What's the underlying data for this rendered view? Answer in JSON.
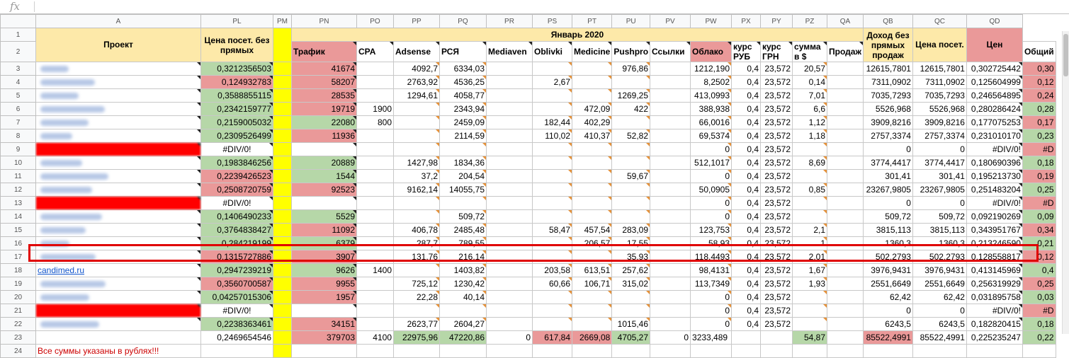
{
  "formula_bar": {
    "fx_label": "fx",
    "value": ""
  },
  "columns": [
    "A",
    "PL",
    "PM",
    "PN",
    "PO",
    "PP",
    "PQ",
    "PR",
    "PS",
    "PT",
    "PU",
    "PV",
    "PW",
    "PX",
    "PY",
    "PZ",
    "QA",
    "QB",
    "QC",
    "QD",
    ""
  ],
  "header": {
    "project": "Проект",
    "price_no_direct": "Цена посет. без прямых",
    "month": "Январь 2020",
    "traffic": "Трафик",
    "cpa": "CPA",
    "adsense": "Adsense",
    "rsya": "РСЯ",
    "mediaven": "Mediaven",
    "oblivki": "Oblivki",
    "medicine": "Medicine",
    "pushpro": "Pushpro",
    "links": "Ссылки",
    "cloud": "Облако",
    "rate_rub": "курс РУБ",
    "rate_uah": "курс ГРН",
    "sum_usd": "сумма в $",
    "sales": "Продаж",
    "total": "Общий",
    "income_no_direct": "Доход без прямых продаж",
    "price_visit": "Цена посет.",
    "price_cut": "Цен"
  },
  "rows": [
    {
      "n": "3",
      "site": "",
      "pl": "0,3212356503",
      "pn": "41674",
      "pp": "4092,7",
      "pq": "6334,03",
      "ps": "",
      "pt": "",
      "pu": "976,86",
      "po": "",
      "pw": "1212,190",
      "px": "0,4",
      "py": "23,572",
      "pz": "20,57",
      "qb": "12615,7801",
      "qc": "12615,7801",
      "qd": "0,302725442",
      "qe": "0,30"
    },
    {
      "n": "4",
      "site": "",
      "pl": "0,124932783",
      "pn": "58207",
      "pp": "2763,92",
      "pq": "4536,25",
      "ps": "2,67",
      "pt": "",
      "pu": "",
      "po": "",
      "pw": "8,2502",
      "px": "0,4",
      "py": "23,572",
      "pz": "0,14",
      "qb": "7311,0902",
      "qc": "7311,0902",
      "qd": "0,125604999",
      "qe": "0,12"
    },
    {
      "n": "5",
      "site": "",
      "pl": "0,3588855115",
      "pn": "28535",
      "pp": "1294,61",
      "pq": "4058,77",
      "ps": "",
      "pt": "",
      "pu": "1269,25",
      "po": "",
      "pw": "413,0993",
      "px": "0,4",
      "py": "23,572",
      "pz": "7,01",
      "qb": "7035,7293",
      "qc": "7035,7293",
      "qd": "0,246564895",
      "qe": "0,24"
    },
    {
      "n": "6",
      "site": "",
      "pl": "0,2342159777",
      "pn": "19719",
      "pp": "",
      "pq": "2343,94",
      "ps": "",
      "pt": "472,09",
      "pu": "422",
      "po": "1900",
      "pw": "388,938",
      "px": "0,4",
      "py": "23,572",
      "pz": "6,6",
      "qb": "5526,968",
      "qc": "5526,968",
      "qd": "0,280286424",
      "qe": "0,28"
    },
    {
      "n": "7",
      "site": "",
      "pl": "0,2159005032",
      "pn": "22080",
      "pp": "",
      "pq": "2459,09",
      "ps": "182,44",
      "pt": "402,29",
      "pu": "",
      "po": "800",
      "pw": "66,0016",
      "px": "0,4",
      "py": "23,572",
      "pz": "1,12",
      "qb": "3909,8216",
      "qc": "3909,8216",
      "qd": "0,177075253",
      "qe": "0,17"
    },
    {
      "n": "8",
      "site": "",
      "pl": "0,2309526499",
      "pn": "11936",
      "pp": "",
      "pq": "2114,59",
      "ps": "110,02",
      "pt": "410,37",
      "pu": "52,82",
      "po": "",
      "pw": "69,5374",
      "px": "0,4",
      "py": "23,572",
      "pz": "1,18",
      "qb": "2757,3374",
      "qc": "2757,3374",
      "qd": "0,231010170",
      "qe": "0,23"
    },
    {
      "n": "9",
      "site": "",
      "pl": "#DIV/0!",
      "pn": "",
      "pp": "",
      "pq": "",
      "ps": "",
      "pt": "",
      "pu": "",
      "po": "",
      "pw": "0",
      "px": "0,4",
      "py": "23,572",
      "pz": "",
      "qb": "0",
      "qc": "0",
      "qd": "#DIV/0!",
      "qe": "#D"
    },
    {
      "n": "10",
      "site": "",
      "pl": "0,1983846256",
      "pn": "20889",
      "pp": "1427,98",
      "pq": "1834,36",
      "ps": "",
      "pt": "",
      "pu": "",
      "po": "",
      "pw": "512,1017",
      "px": "0,4",
      "py": "23,572",
      "pz": "8,69",
      "qb": "3774,4417",
      "qc": "3774,4417",
      "qd": "0,180690396",
      "qe": "0,18"
    },
    {
      "n": "11",
      "site": "",
      "pl": "0,2239426523",
      "pn": "1544",
      "pp": "37,2",
      "pq": "204,54",
      "ps": "",
      "pt": "",
      "pu": "59,67",
      "po": "",
      "pw": "0",
      "px": "0,4",
      "py": "23,572",
      "pz": "",
      "qb": "301,41",
      "qc": "301,41",
      "qd": "0,195213730",
      "qe": "0,19"
    },
    {
      "n": "12",
      "site": "",
      "pl": "0,2508720759",
      "pn": "92523",
      "pp": "9162,14",
      "pq": "14055,75",
      "ps": "",
      "pt": "",
      "pu": "",
      "po": "",
      "pw": "50,0905",
      "px": "0,4",
      "py": "23,572",
      "pz": "0,85",
      "qb": "23267,9805",
      "qc": "23267,9805",
      "qd": "0,251483204",
      "qe": "0,25"
    },
    {
      "n": "13",
      "site": "",
      "pl": "#DIV/0!",
      "pn": "",
      "pp": "",
      "pq": "",
      "ps": "",
      "pt": "",
      "pu": "",
      "po": "",
      "pw": "0",
      "px": "0,4",
      "py": "23,572",
      "pz": "",
      "qb": "0",
      "qc": "0",
      "qd": "#DIV/0!",
      "qe": "#D"
    },
    {
      "n": "14",
      "site": "",
      "pl": "0,1406490233",
      "pn": "5529",
      "pp": "",
      "pq": "509,72",
      "ps": "",
      "pt": "",
      "pu": "",
      "po": "",
      "pw": "0",
      "px": "0,4",
      "py": "23,572",
      "pz": "",
      "qb": "509,72",
      "qc": "509,72",
      "qd": "0,092190269",
      "qe": "0,09"
    },
    {
      "n": "15",
      "site": "",
      "pl": "0,3764838427",
      "pn": "11092",
      "pp": "406,78",
      "pq": "2485,48",
      "ps": "58,47",
      "pt": "457,54",
      "pu": "283,09",
      "po": "",
      "pw": "123,753",
      "px": "0,4",
      "py": "23,572",
      "pz": "2,1",
      "qb": "3815,113",
      "qc": "3815,113",
      "qd": "0,343951767",
      "qe": "0,34"
    },
    {
      "n": "16",
      "site": "",
      "pl": "0,284219199",
      "pn": "6379",
      "pp": "287,7",
      "pq": "789,55",
      "ps": "",
      "pt": "206,57",
      "pu": "17,55",
      "po": "",
      "pw": "58,93",
      "px": "0,4",
      "py": "23,572",
      "pz": "1",
      "qb": "1360,3",
      "qc": "1360,3",
      "qd": "0,213246590",
      "qe": "0,21"
    },
    {
      "n": "17",
      "site": "",
      "pl": "0,1315727886",
      "pn": "3907",
      "pp": "131,76",
      "pq": "216,14",
      "ps": "",
      "pt": "",
      "pu": "35,93",
      "po": "",
      "pw": "118,4493",
      "px": "0,4",
      "py": "23,572",
      "pz": "2,01",
      "qb": "502,2793",
      "qc": "502,2793",
      "qd": "0,128558817",
      "qe": "0,12"
    },
    {
      "n": "18",
      "site": "candimed.ru",
      "pl": "0,2947239219",
      "pn": "9626",
      "pp": "",
      "pq": "1403,82",
      "ps": "203,58",
      "pt": "613,51",
      "pu": "257,62",
      "po": "1400",
      "pw": "98,4131",
      "px": "0,4",
      "py": "23,572",
      "pz": "1,67",
      "qb": "3976,9431",
      "qc": "3976,9431",
      "qd": "0,413145969",
      "qe": "0,4"
    },
    {
      "n": "19",
      "site": "",
      "pl": "0,3560700587",
      "pn": "9955",
      "pp": "725,12",
      "pq": "1230,42",
      "ps": "60,66",
      "pt": "106,71",
      "pu": "315,02",
      "po": "",
      "pw": "113,7349",
      "px": "0,4",
      "py": "23,572",
      "pz": "1,93",
      "qb": "2551,6649",
      "qc": "2551,6649",
      "qd": "0,256319929",
      "qe": "0,25"
    },
    {
      "n": "20",
      "site": "",
      "pl": "0,04257015306",
      "pn": "1957",
      "pp": "22,28",
      "pq": "40,14",
      "ps": "",
      "pt": "",
      "pu": "",
      "po": "",
      "pw": "0",
      "px": "0,4",
      "py": "23,572",
      "pz": "",
      "qb": "62,42",
      "qc": "62,42",
      "qd": "0,031895758",
      "qe": "0,03"
    },
    {
      "n": "21",
      "site": "",
      "pl": "#DIV/0!",
      "pn": "",
      "pp": "",
      "pq": "",
      "ps": "",
      "pt": "",
      "pu": "",
      "po": "",
      "pw": "0",
      "px": "0,4",
      "py": "23,572",
      "pz": "",
      "qb": "0",
      "qc": "0",
      "qd": "#DIV/0!",
      "qe": "#D"
    },
    {
      "n": "22",
      "site": "",
      "pl": "0,2238363461",
      "pn": "34151",
      "pp": "2623,77",
      "pq": "2604,27",
      "ps": "",
      "pt": "",
      "pu": "1015,46",
      "po": "",
      "pw": "0",
      "px": "0,4",
      "py": "23,572",
      "pz": "",
      "qb": "6243,5",
      "qc": "6243,5",
      "qd": "0,182820415",
      "qe": "0,18"
    }
  ],
  "totals": {
    "n": "23",
    "pl": "0,2469654546",
    "pn": "379703",
    "po": "4100",
    "pp": "22975,96",
    "pq": "47220,86",
    "pr": "0",
    "ps": "617,84",
    "pt": "2669,08",
    "pu": "4705,27",
    "pv": "0",
    "pw": "3233,489",
    "pz": "54,87",
    "qb": "85522,4991",
    "qc": "85522,4991",
    "qd": "0,225235247",
    "qe": "0,22"
  },
  "note": {
    "n": "24",
    "text": "Все суммы указаны в рублях!!!"
  },
  "colors": {
    "green": "#b6d7a8",
    "red": "#ea9999",
    "yellow": "#ffff00",
    "header_yellow": "#fde9a9",
    "highlight": "#e00000"
  }
}
